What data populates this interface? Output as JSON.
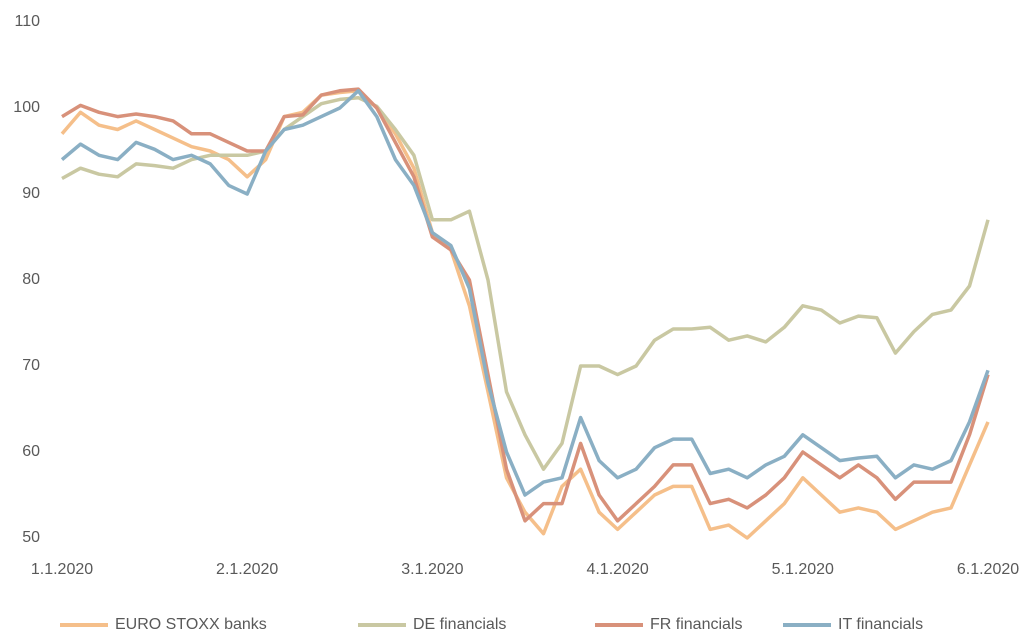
{
  "chart_data": {
    "type": "line",
    "categories": [
      "1.1.2020",
      null,
      null,
      null,
      null,
      null,
      null,
      null,
      null,
      null,
      "2.1.2020",
      null,
      null,
      null,
      null,
      null,
      null,
      null,
      null,
      null,
      "3.1.2020",
      null,
      null,
      null,
      null,
      null,
      null,
      null,
      null,
      null,
      "4.1.2020",
      null,
      null,
      null,
      null,
      null,
      null,
      null,
      null,
      null,
      "5.1.2020",
      null,
      null,
      null,
      null,
      null,
      null,
      null,
      null,
      null,
      "6.1.2020"
    ],
    "series": [
      {
        "name": "EURO STOXX banks",
        "color": "#f5bf8a",
        "values": [
          97,
          99.5,
          98,
          97.5,
          98.5,
          97.5,
          96.5,
          95.5,
          95,
          94,
          92,
          94,
          99,
          99.5,
          101.5,
          101.8,
          102,
          100,
          97,
          93,
          85.5,
          83.5,
          77,
          67,
          57,
          53,
          50.5,
          56,
          58,
          53,
          51,
          53,
          55,
          56,
          56,
          51,
          51.5,
          50,
          52,
          54,
          57,
          55,
          53,
          53.5,
          53,
          51,
          52,
          53,
          53.5,
          58.5,
          63.5
        ]
      },
      {
        "name": "DE financials",
        "color": "#c9c8a2",
        "values": [
          91.8,
          93,
          92.3,
          92,
          93.5,
          93.3,
          93,
          94,
          94.5,
          94.5,
          94.5,
          95,
          97.5,
          99,
          100.5,
          101,
          101.2,
          100.2,
          97.5,
          94.5,
          87,
          87,
          88,
          80,
          67,
          62,
          58,
          61,
          70,
          70,
          69,
          70,
          73,
          74.3,
          74.3,
          74.5,
          73,
          73.5,
          72.8,
          74.5,
          77,
          76.5,
          75,
          75.8,
          75.6,
          71.5,
          74,
          76,
          76.5,
          79.3,
          87
        ]
      },
      {
        "name": "FR financials",
        "color": "#d8917a",
        "values": [
          99,
          100.3,
          99.5,
          99,
          99.3,
          99,
          98.5,
          97,
          97,
          96,
          95,
          95,
          99,
          99.2,
          101.5,
          102,
          102.2,
          100,
          96,
          92,
          85,
          83.5,
          80,
          69,
          58,
          52,
          54,
          54,
          61,
          55,
          52,
          54,
          56,
          58.5,
          58.5,
          54,
          54.5,
          53.5,
          55,
          57,
          60,
          58.5,
          57,
          58.5,
          57,
          54.5,
          56.5,
          56.5,
          56.5,
          62,
          69
        ]
      },
      {
        "name": "IT financials",
        "color": "#8aafc4",
        "values": [
          94,
          95.8,
          94.5,
          94,
          96,
          95.2,
          94,
          94.5,
          93.5,
          91,
          90,
          95,
          97.5,
          98,
          99,
          100,
          102,
          99,
          94,
          91,
          85.5,
          84,
          79,
          68,
          60,
          55,
          56.5,
          57,
          64,
          59,
          57,
          58,
          60.5,
          61.5,
          61.5,
          57.5,
          58,
          57,
          58.5,
          59.5,
          62,
          60.5,
          59,
          59.3,
          59.5,
          57,
          58.5,
          58,
          59,
          63.5,
          69.5
        ]
      }
    ],
    "ylim": [
      50,
      110
    ],
    "yticks": [
      50,
      60,
      70,
      80,
      90,
      100,
      110
    ]
  }
}
